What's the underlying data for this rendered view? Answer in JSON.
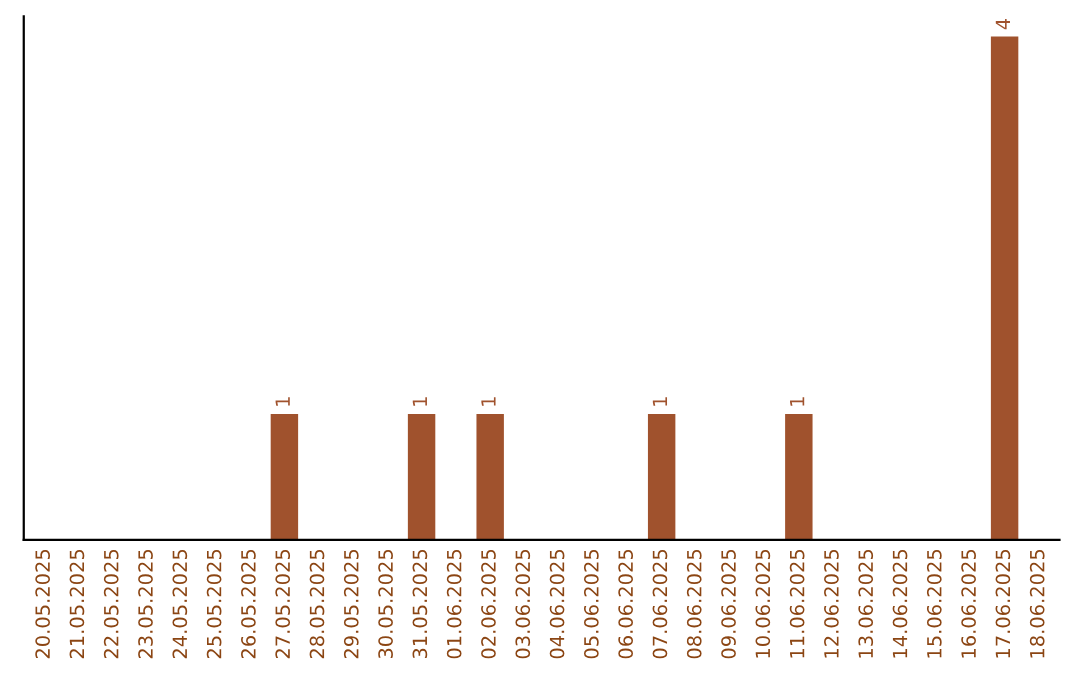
{
  "chart_data": {
    "type": "bar",
    "categories": [
      "20.05.2025",
      "21.05.2025",
      "22.05.2025",
      "23.05.2025",
      "24.05.2025",
      "25.05.2025",
      "26.05.2025",
      "27.05.2025",
      "28.05.2025",
      "29.05.2025",
      "30.05.2025",
      "31.05.2025",
      "01.06.2025",
      "02.06.2025",
      "03.06.2025",
      "04.06.2025",
      "05.06.2025",
      "06.06.2025",
      "07.06.2025",
      "08.06.2025",
      "09.06.2025",
      "10.06.2025",
      "11.06.2025",
      "12.06.2025",
      "13.06.2025",
      "14.06.2025",
      "15.06.2025",
      "16.06.2025",
      "17.06.2025",
      "18.06.2025"
    ],
    "values": [
      0,
      0,
      0,
      0,
      0,
      0,
      0,
      1,
      0,
      0,
      0,
      1,
      0,
      1,
      0,
      0,
      0,
      0,
      1,
      0,
      0,
      0,
      1,
      0,
      0,
      0,
      0,
      0,
      4,
      0
    ],
    "color": "#a0522d",
    "value_labels": [
      null,
      null,
      null,
      null,
      null,
      null,
      null,
      "1",
      null,
      null,
      null,
      "1",
      null,
      "1",
      null,
      null,
      null,
      null,
      "1",
      null,
      null,
      null,
      "1",
      null,
      null,
      null,
      null,
      null,
      "4",
      null
    ],
    "grid": false,
    "legend": false,
    "tick_labels": "x"
  }
}
